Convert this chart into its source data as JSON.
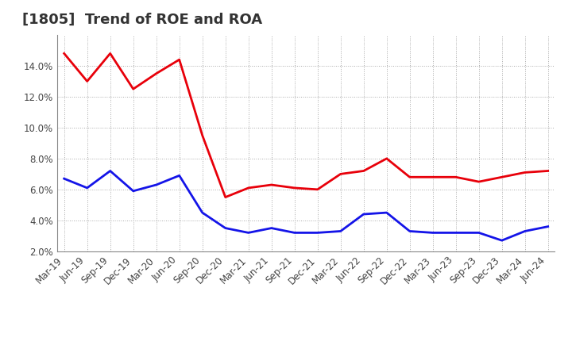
{
  "title": "[1805]  Trend of ROE and ROA",
  "labels": [
    "Mar-19",
    "Jun-19",
    "Sep-19",
    "Dec-19",
    "Mar-20",
    "Jun-20",
    "Sep-20",
    "Dec-20",
    "Mar-21",
    "Jun-21",
    "Sep-21",
    "Dec-21",
    "Mar-22",
    "Jun-22",
    "Sep-22",
    "Dec-22",
    "Mar-23",
    "Jun-23",
    "Sep-23",
    "Dec-23",
    "Mar-24",
    "Jun-24"
  ],
  "roe": [
    14.8,
    13.0,
    14.8,
    12.5,
    13.5,
    14.4,
    9.5,
    5.5,
    6.1,
    6.3,
    6.1,
    6.0,
    7.0,
    7.2,
    8.0,
    6.8,
    6.8,
    6.8,
    6.5,
    6.8,
    7.1,
    7.2
  ],
  "roa": [
    6.7,
    6.1,
    7.2,
    5.9,
    6.3,
    6.9,
    4.5,
    3.5,
    3.2,
    3.5,
    3.2,
    3.2,
    3.3,
    4.4,
    4.5,
    3.3,
    3.2,
    3.2,
    3.2,
    2.7,
    3.3,
    3.6
  ],
  "roe_color": "#e8000a",
  "roa_color": "#1414e8",
  "background_color": "#ffffff",
  "plot_bg_color": "#ffffff",
  "grid_color": "#aaaaaa",
  "ylim": [
    2.0,
    16.0
  ],
  "yticks": [
    2.0,
    4.0,
    6.0,
    8.0,
    10.0,
    12.0,
    14.0
  ],
  "title_fontsize": 13,
  "legend_fontsize": 11,
  "tick_fontsize": 8.5
}
